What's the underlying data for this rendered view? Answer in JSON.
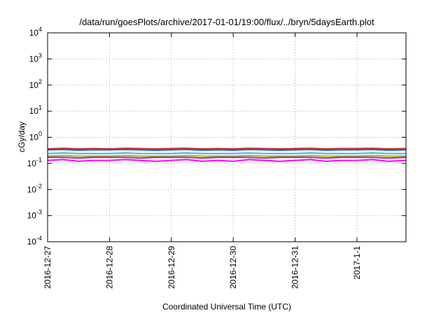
{
  "chart_data": {
    "type": "line",
    "title": "/data/run/goesPlots/archive/2017-01-01/19:00/flux/../bryn/5daysEarth.plot",
    "xlabel": "Coordinated Universal Time (UTC)",
    "ylabel": "cGy/day",
    "yscale": "log",
    "ylim": [
      0.0001,
      10000
    ],
    "xlim": [
      "2016-12-27T00:00",
      "2017-01-01T19:00"
    ],
    "grid": true,
    "legend": "none",
    "x_ticks": [
      {
        "label": "2016-12-27",
        "value": "2016-12-27T00:00"
      },
      {
        "label": "2016-12-28",
        "value": "2016-12-28T00:00"
      },
      {
        "label": "2016-12-29",
        "value": "2016-12-29T00:00"
      },
      {
        "label": "2016-12-30",
        "value": "2016-12-30T00:00"
      },
      {
        "label": "2016-12-31",
        "value": "2016-12-31T00:00"
      },
      {
        "label": "2017-1-1",
        "value": "2017-01-01T00:00"
      }
    ],
    "y_ticks": [
      {
        "label": "10",
        "exp": "4",
        "value": 10000
      },
      {
        "label": "10",
        "exp": "3",
        "value": 1000
      },
      {
        "label": "10",
        "exp": "2",
        "value": 100
      },
      {
        "label": "10",
        "exp": "1",
        "value": 10
      },
      {
        "label": "10",
        "exp": "0",
        "value": 1
      },
      {
        "label": "10",
        "exp": "-1",
        "value": 0.1
      },
      {
        "label": "10",
        "exp": "-2",
        "value": 0.01
      },
      {
        "label": "10",
        "exp": "-3",
        "value": 0.001
      },
      {
        "label": "10",
        "exp": "-4",
        "value": 0.0001
      }
    ],
    "series": [
      {
        "color": "#d62728",
        "values": [
          [
            "2016-12-27T00:00",
            0.36
          ],
          [
            "2016-12-27T06:00",
            0.38
          ],
          [
            "2016-12-27T12:00",
            0.36
          ],
          [
            "2016-12-27T18:00",
            0.37
          ],
          [
            "2016-12-28T00:00",
            0.36
          ],
          [
            "2016-12-28T06:00",
            0.38
          ],
          [
            "2016-12-28T12:00",
            0.37
          ],
          [
            "2016-12-28T18:00",
            0.36
          ],
          [
            "2016-12-29T00:00",
            0.37
          ],
          [
            "2016-12-29T06:00",
            0.38
          ],
          [
            "2016-12-29T12:00",
            0.36
          ],
          [
            "2016-12-29T18:00",
            0.37
          ],
          [
            "2016-12-30T00:00",
            0.36
          ],
          [
            "2016-12-30T06:00",
            0.38
          ],
          [
            "2016-12-30T12:00",
            0.37
          ],
          [
            "2016-12-30T18:00",
            0.36
          ],
          [
            "2016-12-31T00:00",
            0.37
          ],
          [
            "2016-12-31T06:00",
            0.38
          ],
          [
            "2016-12-31T12:00",
            0.36
          ],
          [
            "2016-12-31T18:00",
            0.37
          ],
          [
            "2017-01-01T00:00",
            0.37
          ],
          [
            "2017-01-01T06:00",
            0.38
          ],
          [
            "2017-01-01T12:00",
            0.36
          ],
          [
            "2017-01-01T19:00",
            0.37
          ]
        ]
      },
      {
        "color": "#1f5fd6",
        "values": [
          [
            "2016-12-27T00:00",
            0.33
          ],
          [
            "2016-12-27T06:00",
            0.34
          ],
          [
            "2016-12-27T12:00",
            0.32
          ],
          [
            "2016-12-27T18:00",
            0.33
          ],
          [
            "2016-12-28T00:00",
            0.33
          ],
          [
            "2016-12-28T06:00",
            0.34
          ],
          [
            "2016-12-28T12:00",
            0.33
          ],
          [
            "2016-12-28T18:00",
            0.32
          ],
          [
            "2016-12-29T00:00",
            0.33
          ],
          [
            "2016-12-29T06:00",
            0.34
          ],
          [
            "2016-12-29T12:00",
            0.32
          ],
          [
            "2016-12-29T18:00",
            0.33
          ],
          [
            "2016-12-30T00:00",
            0.32
          ],
          [
            "2016-12-30T06:00",
            0.34
          ],
          [
            "2016-12-30T12:00",
            0.33
          ],
          [
            "2016-12-30T18:00",
            0.32
          ],
          [
            "2016-12-31T00:00",
            0.33
          ],
          [
            "2016-12-31T06:00",
            0.34
          ],
          [
            "2016-12-31T12:00",
            0.32
          ],
          [
            "2016-12-31T18:00",
            0.33
          ],
          [
            "2017-01-01T00:00",
            0.33
          ],
          [
            "2017-01-01T06:00",
            0.34
          ],
          [
            "2017-01-01T12:00",
            0.32
          ],
          [
            "2017-01-01T19:00",
            0.33
          ]
        ]
      },
      {
        "color": "#2ec4c0",
        "values": [
          [
            "2016-12-27T00:00",
            0.24
          ],
          [
            "2016-12-27T06:00",
            0.25
          ],
          [
            "2016-12-27T12:00",
            0.24
          ],
          [
            "2016-12-27T18:00",
            0.24
          ],
          [
            "2016-12-28T00:00",
            0.24
          ],
          [
            "2016-12-28T06:00",
            0.25
          ],
          [
            "2016-12-28T12:00",
            0.24
          ],
          [
            "2016-12-28T18:00",
            0.24
          ],
          [
            "2016-12-29T00:00",
            0.24
          ],
          [
            "2016-12-29T06:00",
            0.25
          ],
          [
            "2016-12-29T12:00",
            0.24
          ],
          [
            "2016-12-29T18:00",
            0.24
          ],
          [
            "2016-12-30T00:00",
            0.24
          ],
          [
            "2016-12-30T06:00",
            0.25
          ],
          [
            "2016-12-30T12:00",
            0.24
          ],
          [
            "2016-12-30T18:00",
            0.24
          ],
          [
            "2016-12-31T00:00",
            0.24
          ],
          [
            "2016-12-31T06:00",
            0.25
          ],
          [
            "2016-12-31T12:00",
            0.24
          ],
          [
            "2016-12-31T18:00",
            0.24
          ],
          [
            "2017-01-01T00:00",
            0.24
          ],
          [
            "2017-01-01T06:00",
            0.25
          ],
          [
            "2017-01-01T12:00",
            0.24
          ],
          [
            "2017-01-01T19:00",
            0.24
          ]
        ]
      },
      {
        "color": "#c8a000",
        "values": [
          [
            "2016-12-27T00:00",
            0.19
          ],
          [
            "2016-12-27T06:00",
            0.2
          ],
          [
            "2016-12-27T12:00",
            0.19
          ],
          [
            "2016-12-27T18:00",
            0.19
          ],
          [
            "2016-12-28T00:00",
            0.19
          ],
          [
            "2016-12-28T06:00",
            0.2
          ],
          [
            "2016-12-28T12:00",
            0.19
          ],
          [
            "2016-12-28T18:00",
            0.19
          ],
          [
            "2016-12-29T00:00",
            0.19
          ],
          [
            "2016-12-29T06:00",
            0.2
          ],
          [
            "2016-12-29T12:00",
            0.19
          ],
          [
            "2016-12-29T18:00",
            0.19
          ],
          [
            "2016-12-30T00:00",
            0.19
          ],
          [
            "2016-12-30T06:00",
            0.2
          ],
          [
            "2016-12-30T12:00",
            0.19
          ],
          [
            "2016-12-30T18:00",
            0.19
          ],
          [
            "2016-12-31T00:00",
            0.19
          ],
          [
            "2016-12-31T06:00",
            0.2
          ],
          [
            "2016-12-31T12:00",
            0.19
          ],
          [
            "2016-12-31T18:00",
            0.19
          ],
          [
            "2017-01-01T00:00",
            0.19
          ],
          [
            "2017-01-01T06:00",
            0.2
          ],
          [
            "2017-01-01T12:00",
            0.19
          ],
          [
            "2017-01-01T19:00",
            0.19
          ]
        ]
      },
      {
        "color": "#8a2be2",
        "values": [
          [
            "2016-12-27T00:00",
            0.17
          ],
          [
            "2016-12-27T06:00",
            0.17
          ],
          [
            "2016-12-27T12:00",
            0.16
          ],
          [
            "2016-12-27T18:00",
            0.17
          ],
          [
            "2016-12-28T00:00",
            0.17
          ],
          [
            "2016-12-28T06:00",
            0.17
          ],
          [
            "2016-12-28T12:00",
            0.16
          ],
          [
            "2016-12-28T18:00",
            0.17
          ],
          [
            "2016-12-29T00:00",
            0.17
          ],
          [
            "2016-12-29T06:00",
            0.17
          ],
          [
            "2016-12-29T12:00",
            0.16
          ],
          [
            "2016-12-29T18:00",
            0.17
          ],
          [
            "2016-12-30T00:00",
            0.17
          ],
          [
            "2016-12-30T06:00",
            0.17
          ],
          [
            "2016-12-30T12:00",
            0.16
          ],
          [
            "2016-12-30T18:00",
            0.17
          ],
          [
            "2016-12-31T00:00",
            0.17
          ],
          [
            "2016-12-31T06:00",
            0.17
          ],
          [
            "2016-12-31T12:00",
            0.16
          ],
          [
            "2016-12-31T18:00",
            0.17
          ],
          [
            "2017-01-01T00:00",
            0.17
          ],
          [
            "2017-01-01T06:00",
            0.17
          ],
          [
            "2017-01-01T12:00",
            0.16
          ],
          [
            "2017-01-01T19:00",
            0.17
          ]
        ]
      },
      {
        "color": "#ff00ff",
        "values": [
          [
            "2016-12-27T00:00",
            0.13
          ],
          [
            "2016-12-27T06:00",
            0.14
          ],
          [
            "2016-12-27T12:00",
            0.12
          ],
          [
            "2016-12-27T18:00",
            0.13
          ],
          [
            "2016-12-28T00:00",
            0.13
          ],
          [
            "2016-12-28T06:00",
            0.14
          ],
          [
            "2016-12-28T12:00",
            0.13
          ],
          [
            "2016-12-28T18:00",
            0.12
          ],
          [
            "2016-12-29T00:00",
            0.13
          ],
          [
            "2016-12-29T06:00",
            0.14
          ],
          [
            "2016-12-29T12:00",
            0.12
          ],
          [
            "2016-12-29T18:00",
            0.13
          ],
          [
            "2016-12-30T00:00",
            0.12
          ],
          [
            "2016-12-30T06:00",
            0.14
          ],
          [
            "2016-12-30T12:00",
            0.13
          ],
          [
            "2016-12-30T18:00",
            0.12
          ],
          [
            "2016-12-31T00:00",
            0.13
          ],
          [
            "2016-12-31T06:00",
            0.14
          ],
          [
            "2016-12-31T12:00",
            0.12
          ],
          [
            "2016-12-31T18:00",
            0.13
          ],
          [
            "2017-01-01T00:00",
            0.13
          ],
          [
            "2017-01-01T06:00",
            0.14
          ],
          [
            "2017-01-01T12:00",
            0.12
          ],
          [
            "2017-01-01T19:00",
            0.13
          ]
        ]
      }
    ]
  }
}
